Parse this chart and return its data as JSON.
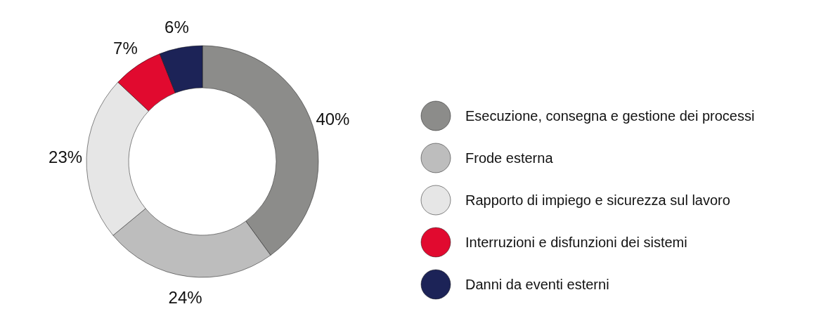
{
  "chart_data": {
    "type": "donut",
    "categories": [
      "Esecuzione, consegna e gestione dei processi",
      "Frode esterna",
      "Rapporto di impiego e sicurezza sul lavoro",
      "Interruzioni e disfunzioni dei sistemi",
      "Danni da eventi esterni"
    ],
    "values": [
      40,
      24,
      23,
      7,
      6
    ],
    "value_labels": [
      "40%",
      "24%",
      "23%",
      "7%",
      "6%"
    ],
    "colors": [
      "#8c8c8a",
      "#bdbdbd",
      "#e6e6e6",
      "#e10a2f",
      "#1c2357"
    ],
    "legend": "right"
  }
}
